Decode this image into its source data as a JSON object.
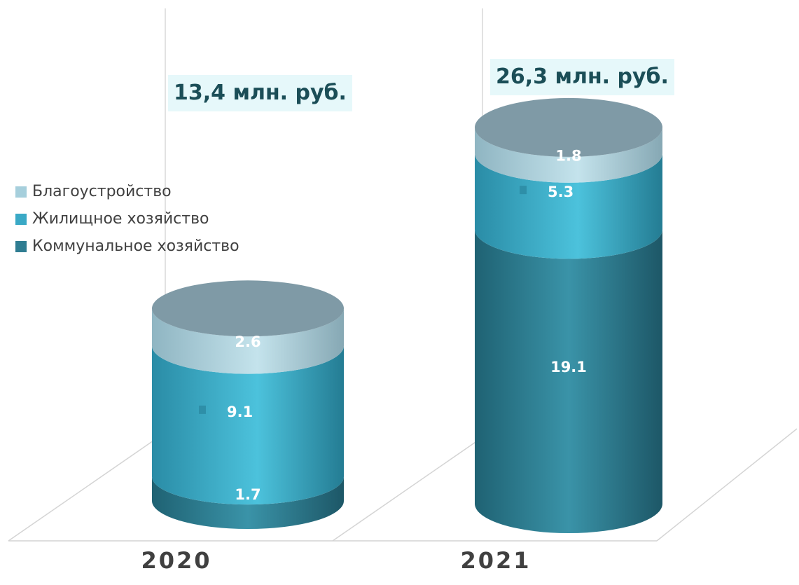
{
  "chart_data": {
    "type": "bar",
    "style": "stacked-3d-cylinder",
    "categories": [
      "2020",
      "2021"
    ],
    "series": [
      {
        "name": "Коммунальное хозяйство",
        "values": [
          1.7,
          19.1
        ],
        "labels": [
          "1.7",
          "19.1"
        ],
        "color": "#2f7d92"
      },
      {
        "name": "Жилищное хозяйство",
        "values": [
          9.1,
          5.3
        ],
        "labels": [
          "9.1",
          "5.3"
        ],
        "color": "#3aa9c6"
      },
      {
        "name": "Благоустройство",
        "values": [
          2.6,
          1.8
        ],
        "labels": [
          "2.6",
          "1.8"
        ],
        "color": "#a6cfdc"
      }
    ],
    "totals": [
      "13,4 млн. руб.",
      "26,3 млн. руб."
    ],
    "top_cap_color": "#7f9aa6",
    "legend_position": "left",
    "grid": false,
    "ylim": [
      0,
      26.3
    ]
  }
}
